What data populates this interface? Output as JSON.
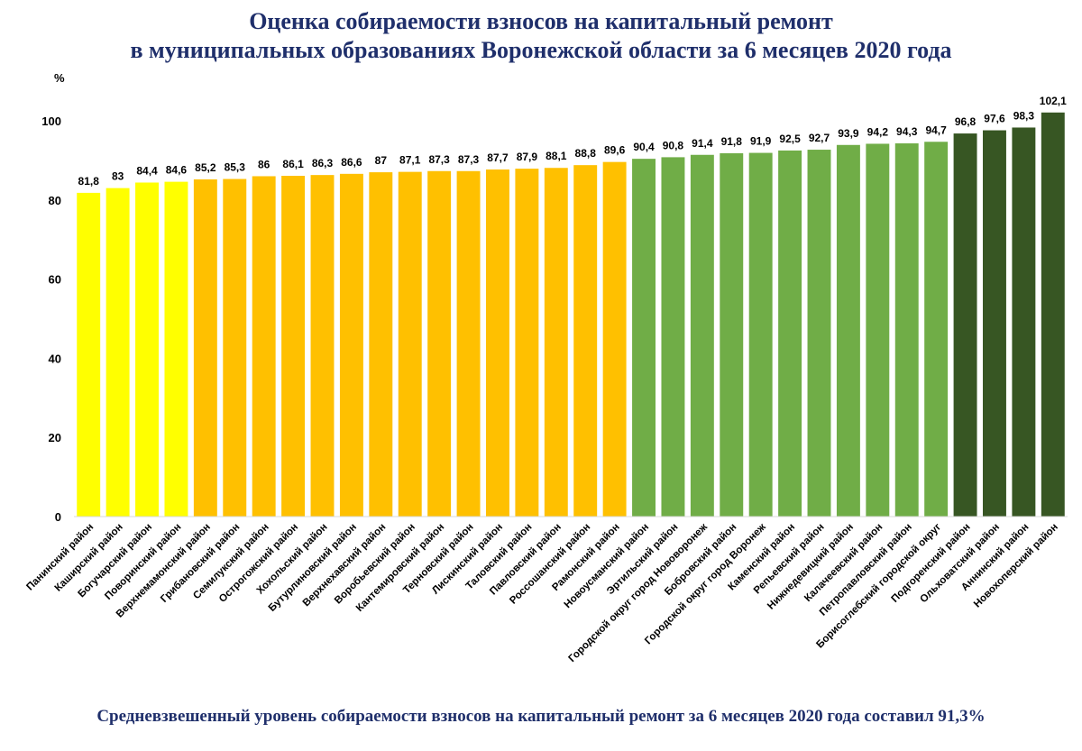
{
  "chart_data": {
    "type": "bar",
    "title_line1": "Оценка собираемости взносов на капитальный ремонт",
    "title_line2": "в муниципальных образованиях Воронежской области за 6 месяцев 2020 года",
    "ylabel": "%",
    "ylim": [
      0,
      100
    ],
    "yticks": [
      0,
      20,
      40,
      60,
      80,
      100
    ],
    "grid": false,
    "footer": "Средневзвешенный уровень собираемости взносов на капитальный ремонт за 6 месяцев 2020 года составил 91,3%",
    "categories": [
      "Панинский район",
      "Каширский район",
      "Богучарский район",
      "Поворинский район",
      "Верхнемамонский район",
      "Грибановский район",
      "Семилукский район",
      "Острогожский район",
      "Хохольский район",
      "Бутурлиновский район",
      "Верхнехавский район",
      "Воробьевский район",
      "Кантемировский район",
      "Терновский район",
      "Лискинский район",
      "Таловский район",
      "Павловский район",
      "Россошанский район",
      "Рамонский район",
      "Новоусманский район",
      "Эртильский район",
      "Городской округ город Нововоронеж",
      "Бобровский район",
      "Городской округ город Воронеж",
      "Каменский район",
      "Репьевский район",
      "Нижнедевицкий район",
      "Калачеевский район",
      "Петропавловский район",
      "Борисоглебский городской округ",
      "Подгоренский район",
      "Ольховатский район",
      "Аннинский район",
      "Новохоперский район"
    ],
    "values": [
      81.8,
      83,
      84.4,
      84.6,
      85.2,
      85.3,
      86,
      86.1,
      86.3,
      86.6,
      87,
      87.1,
      87.3,
      87.3,
      87.7,
      87.9,
      88.1,
      88.8,
      89.6,
      90.4,
      90.8,
      91.4,
      91.8,
      91.9,
      92.5,
      92.7,
      93.9,
      94.2,
      94.3,
      94.7,
      96.8,
      97.6,
      98.3,
      102.1
    ],
    "value_labels": [
      "81,8",
      "83",
      "84,4",
      "84,6",
      "85,2",
      "85,3",
      "86",
      "86,1",
      "86,3",
      "86,6",
      "87",
      "87,1",
      "87,3",
      "87,3",
      "87,7",
      "87,9",
      "88,1",
      "88,8",
      "89,6",
      "90,4",
      "90,8",
      "91,4",
      "91,8",
      "91,9",
      "92,5",
      "92,7",
      "93,9",
      "94,2",
      "94,3",
      "94,7",
      "96,8",
      "97,6",
      "98,3",
      "102,1"
    ],
    "color_groups": [
      {
        "color": "#ffff00",
        "count": 4
      },
      {
        "color": "#ffc000",
        "count": 15
      },
      {
        "color": "#70ad47",
        "count": 11
      },
      {
        "color": "#375623",
        "count": 4
      }
    ]
  }
}
